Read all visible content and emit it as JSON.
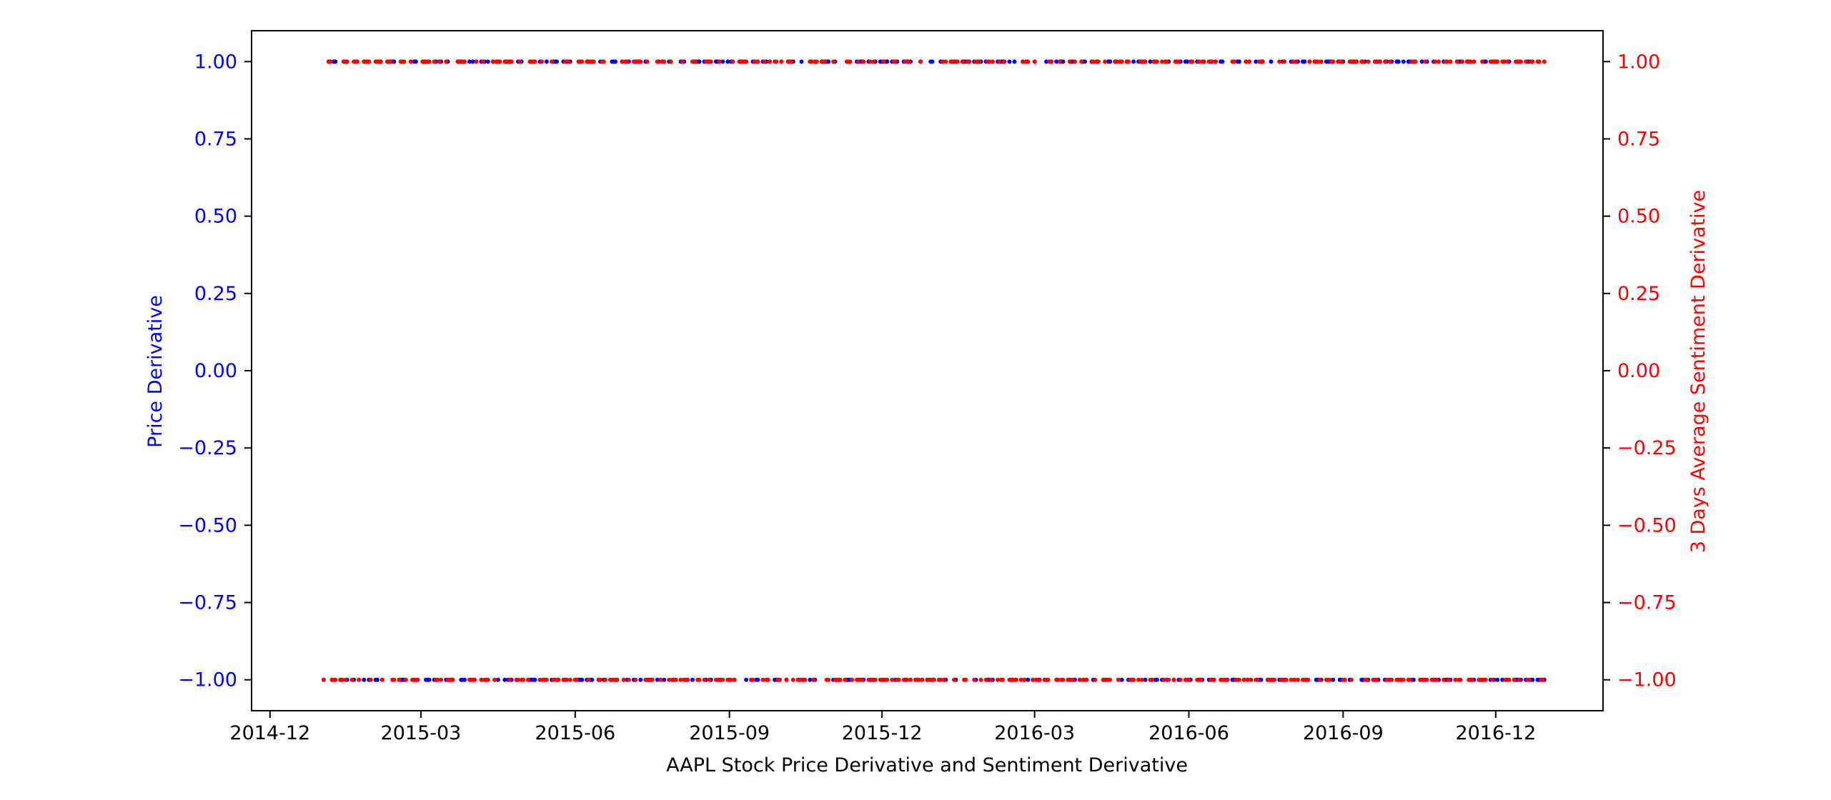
{
  "chart_data": {
    "type": "scatter",
    "xlabel": "AAPL Stock Price Derivative and Sentiment Derivative",
    "x_range": [
      "2014-11-20",
      "2017-02-03"
    ],
    "x_ticks": [
      "2014-12",
      "2015-03",
      "2015-06",
      "2015-09",
      "2015-12",
      "2016-03",
      "2016-06",
      "2016-09",
      "2016-12"
    ],
    "x_tick_dates": [
      "2014-12-01",
      "2015-03-01",
      "2015-06-01",
      "2015-09-01",
      "2015-12-01",
      "2016-03-01",
      "2016-06-01",
      "2016-09-01",
      "2016-12-01"
    ],
    "left_axis": {
      "label": "Price Derivative",
      "color": "#0000ff",
      "ylim": [
        -1.1,
        1.1
      ],
      "ticks": [
        "−1.00",
        "−0.75",
        "−0.50",
        "−0.25",
        "0.00",
        "0.25",
        "0.50",
        "0.75",
        "1.00"
      ],
      "tick_values": [
        -1.0,
        -0.75,
        -0.5,
        -0.25,
        0.0,
        0.25,
        0.5,
        0.75,
        1.0
      ]
    },
    "right_axis": {
      "label": "3 Days Average Sentiment Derivative",
      "color": "#ff0000",
      "ylim": [
        -1.1,
        1.1
      ],
      "ticks": [
        "−1.00",
        "−0.75",
        "−0.50",
        "−0.25",
        "0.00",
        "0.25",
        "0.50",
        "0.75",
        "1.00"
      ],
      "tick_values": [
        -1.0,
        -0.75,
        -0.5,
        -0.25,
        0.0,
        0.25,
        0.5,
        0.75,
        1.0
      ]
    },
    "series": [
      {
        "axis": "left",
        "color": "#0000ff",
        "x_start": "2015-01-02",
        "x_end": "2016-12-30",
        "values": [
          1,
          -1
        ],
        "note_on_values": "each trading day is either +1 (up) or -1 (down)"
      },
      {
        "axis": "right",
        "color": "#ff0000",
        "x_start": "2015-01-02",
        "x_end": "2016-12-30",
        "values": [
          1,
          -1
        ]
      }
    ],
    "grid": false
  }
}
